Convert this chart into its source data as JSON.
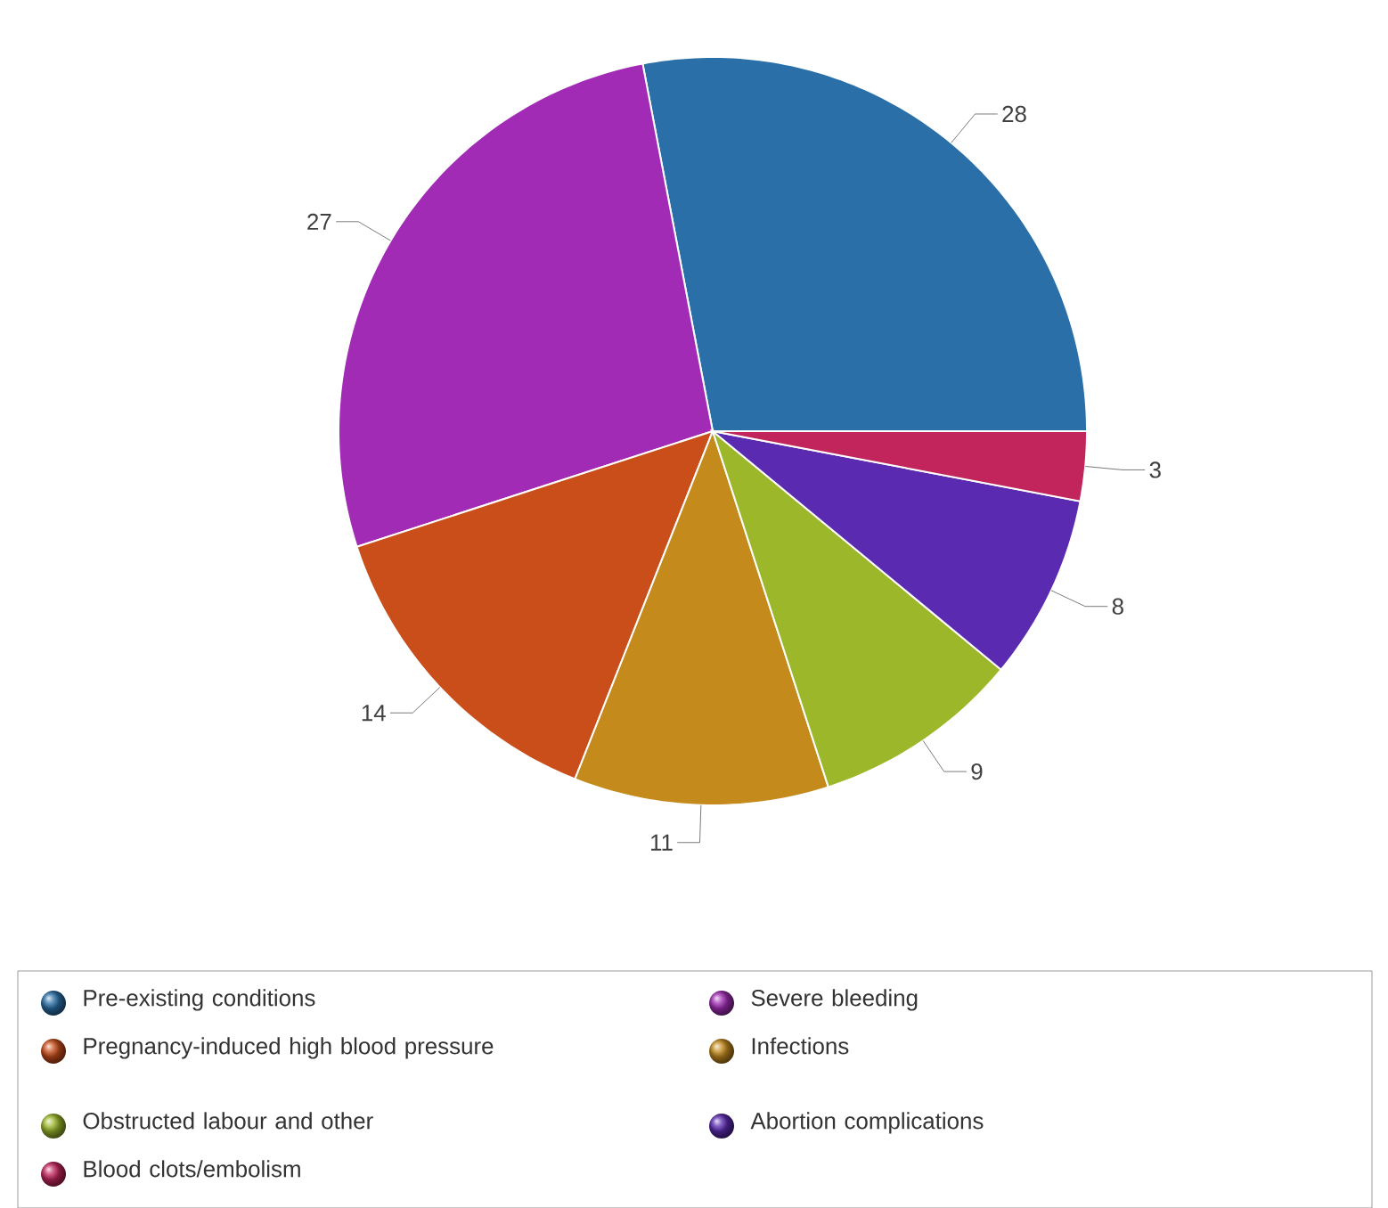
{
  "chart_data": {
    "type": "pie",
    "categories": [
      "Pre-existing conditions",
      "Severe bleeding",
      "Pregnancy-induced high blood pressure",
      "Infections",
      "Obstructed labour and other",
      "Abortion complications",
      "Blood clots/embolism"
    ],
    "values": [
      28,
      27,
      14,
      11,
      9,
      8,
      3
    ],
    "colors": [
      "#2a6fa8",
      "#a12bb4",
      "#c94e1a",
      "#c48a1c",
      "#9cb82a",
      "#5a2ab0",
      "#c2255c"
    ],
    "data_labels": true,
    "legend": "bottom"
  }
}
